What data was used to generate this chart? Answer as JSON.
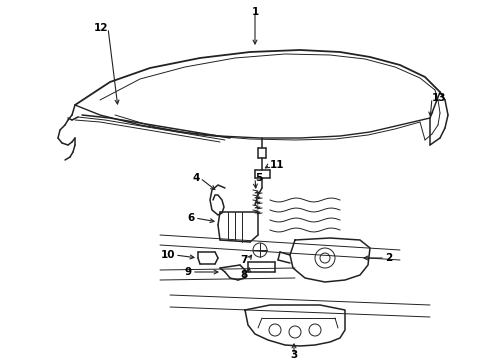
{
  "background_color": "#ffffff",
  "line_color": "#222222",
  "label_color": "#000000",
  "fig_width": 4.9,
  "fig_height": 3.6,
  "dpi": 100,
  "lw_main": 1.1,
  "lw_thin": 0.7,
  "label_fontsize": 7.5
}
